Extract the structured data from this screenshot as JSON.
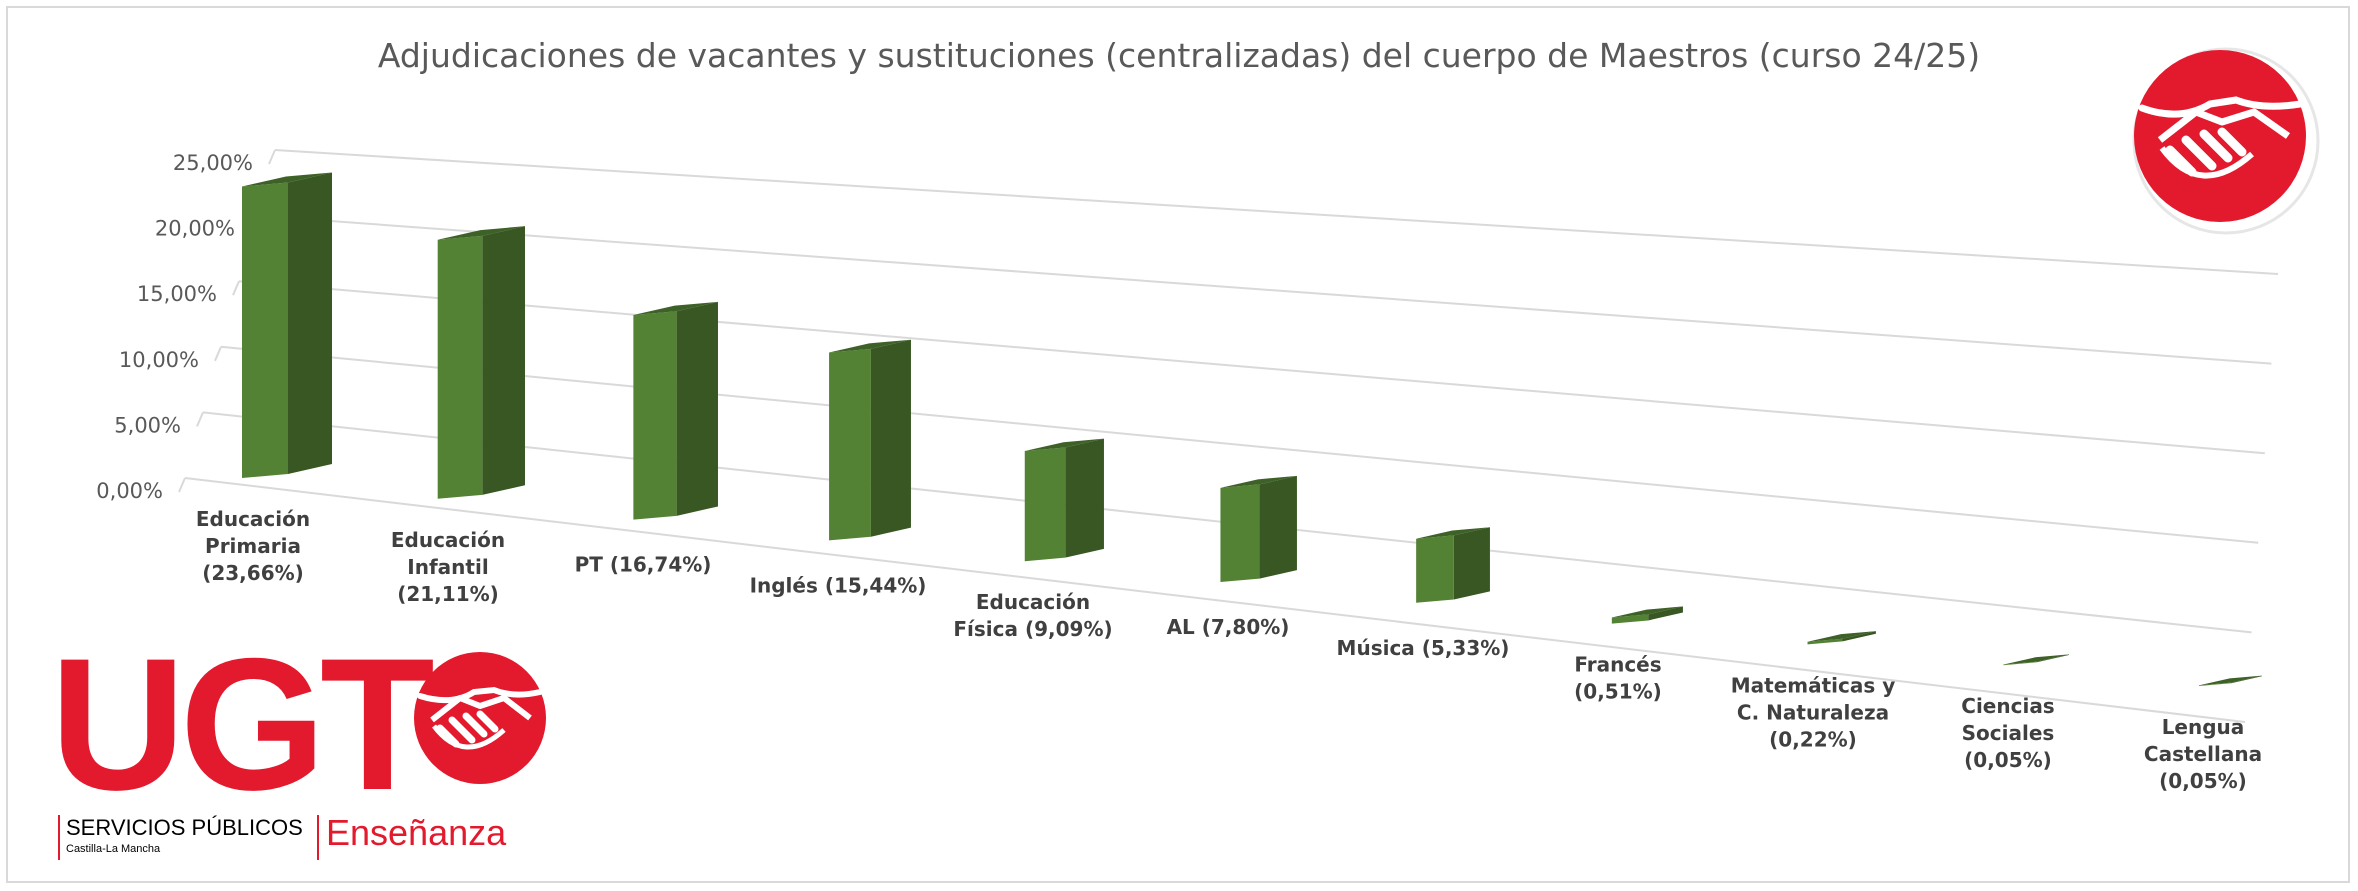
{
  "title": "Adjudicaciones de vacantes y sustituciones (centralizadas) del cuerpo de Maestros (curso 24/25)",
  "colors": {
    "bar_front": "#548235",
    "bar_side": "#385723",
    "bar_top": "#3e6128",
    "grid": "#d9d9d9",
    "brand_red": "#e3192d"
  },
  "chart_data": {
    "type": "bar",
    "title": "Adjudicaciones de vacantes y sustituciones (centralizadas) del cuerpo de Maestros (curso 24/25)",
    "categories": [
      "Educación Primaria (23,66%)",
      "Educación Infantil (21,11%)",
      "PT (16,74%)",
      "Inglés (15,44%)",
      "Educación Física (9,09%)",
      "AL (7,80%)",
      "Música (5,33%)",
      "Francés (0,51%)",
      "Matemáticas y C. Naturaleza (0,22%)",
      "Ciencias Sociales (0,05%)",
      "Lengua Castellana (0,05%)"
    ],
    "category_lines": [
      [
        "Educación",
        "Primaria",
        "(23,66%)"
      ],
      [
        "Educación",
        "Infantil",
        "(21,11%)"
      ],
      [
        "PT (16,74%)"
      ],
      [
        "Inglés (15,44%)"
      ],
      [
        "Educación",
        "Física (9,09%)"
      ],
      [
        "AL (7,80%)"
      ],
      [
        "Música (5,33%)"
      ],
      [
        "Francés",
        "(0,51%)"
      ],
      [
        "Matemáticas y",
        "C. Naturaleza",
        "(0,22%)"
      ],
      [
        "Ciencias",
        "Sociales",
        "(0,05%)"
      ],
      [
        "Lengua",
        "Castellana",
        "(0,05%)"
      ]
    ],
    "values": [
      23.66,
      21.11,
      16.74,
      15.44,
      9.09,
      7.8,
      5.33,
      0.51,
      0.22,
      0.05,
      0.05
    ],
    "y_ticks": [
      "0,00%",
      "5,00%",
      "10,00%",
      "15,00%",
      "20,00%",
      "25,00%"
    ],
    "y_tick_values": [
      0,
      5,
      10,
      15,
      20,
      25
    ],
    "ylim": [
      0,
      25
    ],
    "grid": true,
    "three_d": true
  },
  "logo": {
    "brand": "UGT",
    "division": "SERVICIOS PÚBLICOS",
    "region": "Castilla-La Mancha",
    "sector": "Enseñanza"
  }
}
